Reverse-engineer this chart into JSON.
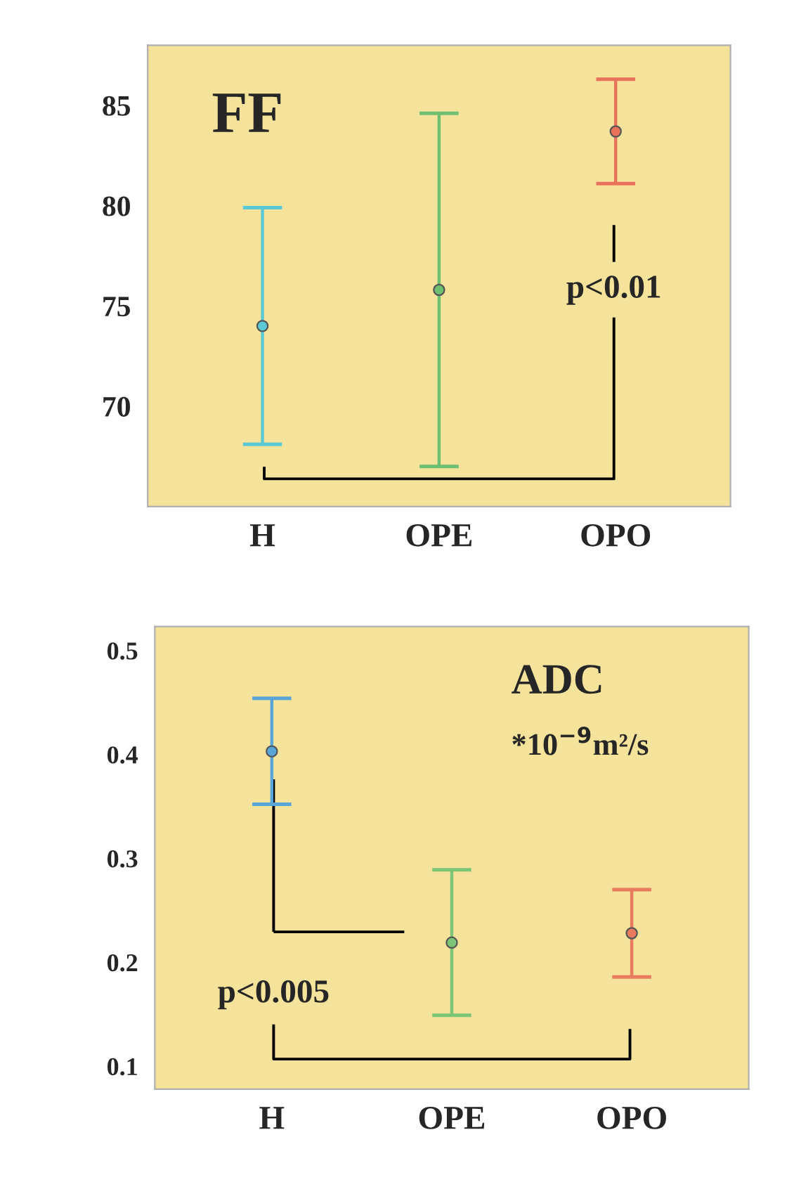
{
  "chart_data": [
    {
      "type": "scatter",
      "title": "FF",
      "categories": [
        "H",
        "OPE",
        "OPO"
      ],
      "values": [
        74.0,
        75.8,
        83.7
      ],
      "errors": [
        5.9,
        8.8,
        2.6
      ],
      "colors": [
        "#5bc8d6",
        "#6dbf72",
        "#e8735a"
      ],
      "ylim": [
        65,
        88
      ],
      "yticks": [
        {
          "value": 65,
          "label": null
        },
        70,
        75,
        80,
        85
      ],
      "marker": "circle",
      "grid": false,
      "legend": false,
      "annotations": [
        "p<0.01"
      ]
    },
    {
      "type": "scatter",
      "title": "ADC",
      "subtitle": "*10$^{−9}$m²/s",
      "categories": [
        "H",
        "OPE",
        "OPO"
      ],
      "values": [
        0.403,
        0.219,
        0.228
      ],
      "errors": [
        0.051,
        0.07,
        0.042
      ],
      "colors": [
        "#5aa5d8",
        "#7cc576",
        "#e87a5e"
      ],
      "ylim": [
        0.078,
        0.523
      ],
      "yticks": [
        0.1,
        0.2,
        0.3,
        0.4,
        0.5
      ],
      "marker": "circle",
      "grid": false,
      "legend": false,
      "annotations": [
        "p<0.005"
      ]
    }
  ]
}
